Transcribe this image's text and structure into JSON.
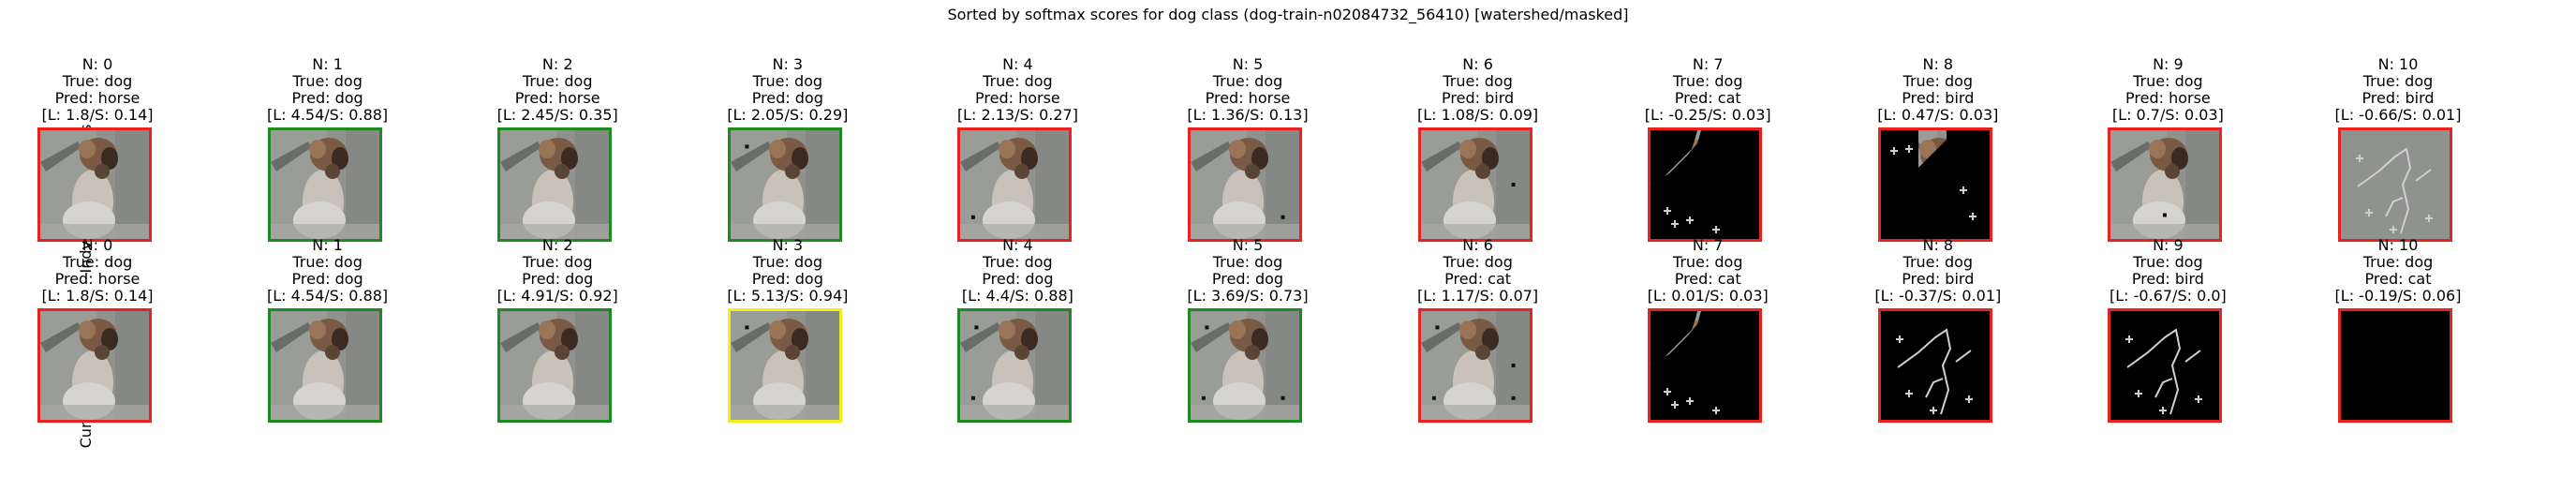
{
  "title": "Sorted by softmax scores for dog class (dog-train-n02084732_56410) [watershed/masked]",
  "row_labels": [
    "Indvidual Segments",
    "Cumulative Image"
  ],
  "colors": {
    "red": "#e8231f",
    "green": "#1f8a1f",
    "yellow": "#f2ee18"
  },
  "rows": [
    {
      "cells": [
        {
          "n": "N: 0",
          "true": "True: dog",
          "pred": "Pred: horse",
          "score": "[L: 1.8/S: 0.14]",
          "border": "red",
          "style": "full",
          "dots": []
        },
        {
          "n": "N: 1",
          "true": "True: dog",
          "pred": "Pred: dog",
          "score": "[L: 4.54/S: 0.88]",
          "border": "green",
          "style": "full",
          "dots": []
        },
        {
          "n": "N: 2",
          "true": "True: dog",
          "pred": "Pred: horse",
          "score": "[L: 2.45/S: 0.35]",
          "border": "green",
          "style": "full",
          "dots": []
        },
        {
          "n": "N: 3",
          "true": "True: dog",
          "pred": "Pred: dog",
          "score": "[L: 2.05/S: 0.29]",
          "border": "green",
          "style": "full",
          "dots": [
            [
              0.15,
              0.15
            ]
          ]
        },
        {
          "n": "N: 4",
          "true": "True: dog",
          "pred": "Pred: horse",
          "score": "[L: 2.13/S: 0.27]",
          "border": "red",
          "style": "full",
          "dots": [
            [
              0.12,
              0.8
            ]
          ]
        },
        {
          "n": "N: 5",
          "true": "True: dog",
          "pred": "Pred: horse",
          "score": "[L: 1.36/S: 0.13]",
          "border": "red",
          "style": "full",
          "dots": [
            [
              0.85,
              0.8
            ]
          ]
        },
        {
          "n": "N: 6",
          "true": "True: dog",
          "pred": "Pred: bird",
          "score": "[L: 1.08/S: 0.09]",
          "border": "red",
          "style": "full",
          "dots": [
            [
              0.85,
              0.5
            ]
          ]
        },
        {
          "n": "N: 7",
          "true": "True: dog",
          "pred": "Pred: cat",
          "score": "[L: -0.25/S: 0.03]",
          "border": "red",
          "style": "half",
          "dots": []
        },
        {
          "n": "N: 8",
          "true": "True: dog",
          "pred": "Pred: bird",
          "score": "[L: 0.47/S: 0.03]",
          "border": "red",
          "style": "quarter",
          "dots": []
        },
        {
          "n": "N: 9",
          "true": "True: dog",
          "pred": "Pred: horse",
          "score": "[L: 0.7/S: 0.03]",
          "border": "red",
          "style": "full",
          "dots": [
            [
              0.5,
              0.78
            ]
          ]
        },
        {
          "n": "N: 10",
          "true": "True: dog",
          "pred": "Pred: bird",
          "score": "[L: -0.66/S: 0.01]",
          "border": "red",
          "style": "lines",
          "dots": []
        }
      ]
    },
    {
      "cells": [
        {
          "n": "N: 0",
          "true": "True: dog",
          "pred": "Pred: horse",
          "score": "[L: 1.8/S: 0.14]",
          "border": "red",
          "style": "full",
          "dots": []
        },
        {
          "n": "N: 1",
          "true": "True: dog",
          "pred": "Pred: dog",
          "score": "[L: 4.54/S: 0.88]",
          "border": "green",
          "style": "full",
          "dots": []
        },
        {
          "n": "N: 2",
          "true": "True: dog",
          "pred": "Pred: dog",
          "score": "[L: 4.91/S: 0.92]",
          "border": "green",
          "style": "full",
          "dots": []
        },
        {
          "n": "N: 3",
          "true": "True: dog",
          "pred": "Pred: dog",
          "score": "[L: 5.13/S: 0.94]",
          "border": "yellow",
          "style": "full",
          "dots": [
            [
              0.15,
              0.15
            ]
          ]
        },
        {
          "n": "N: 4",
          "true": "True: dog",
          "pred": "Pred: dog",
          "score": "[L: 4.4/S: 0.88]",
          "border": "green",
          "style": "full",
          "dots": [
            [
              0.15,
              0.15
            ],
            [
              0.12,
              0.8
            ]
          ]
        },
        {
          "n": "N: 5",
          "true": "True: dog",
          "pred": "Pred: dog",
          "score": "[L: 3.69/S: 0.73]",
          "border": "green",
          "style": "full",
          "dots": [
            [
              0.15,
              0.15
            ],
            [
              0.12,
              0.8
            ],
            [
              0.85,
              0.8
            ]
          ]
        },
        {
          "n": "N: 6",
          "true": "True: dog",
          "pred": "Pred: cat",
          "score": "[L: 1.17/S: 0.07]",
          "border": "red",
          "style": "full",
          "dots": [
            [
              0.15,
              0.15
            ],
            [
              0.12,
              0.8
            ],
            [
              0.85,
              0.8
            ],
            [
              0.85,
              0.5
            ]
          ]
        },
        {
          "n": "N: 7",
          "true": "True: dog",
          "pred": "Pred: cat",
          "score": "[L: 0.01/S: 0.03]",
          "border": "red",
          "style": "half",
          "dots": []
        },
        {
          "n": "N: 8",
          "true": "True: dog",
          "pred": "Pred: bird",
          "score": "[L: -0.37/S: 0.01]",
          "border": "red",
          "style": "lines",
          "dots": []
        },
        {
          "n": "N: 9",
          "true": "True: dog",
          "pred": "Pred: bird",
          "score": "[L: -0.67/S: 0.0]",
          "border": "red",
          "style": "lines2",
          "dots": []
        },
        {
          "n": "N: 10",
          "true": "True: dog",
          "pred": "Pred: cat",
          "score": "[L: -0.19/S: 0.06]",
          "border": "red",
          "style": "black",
          "dots": []
        }
      ]
    }
  ]
}
